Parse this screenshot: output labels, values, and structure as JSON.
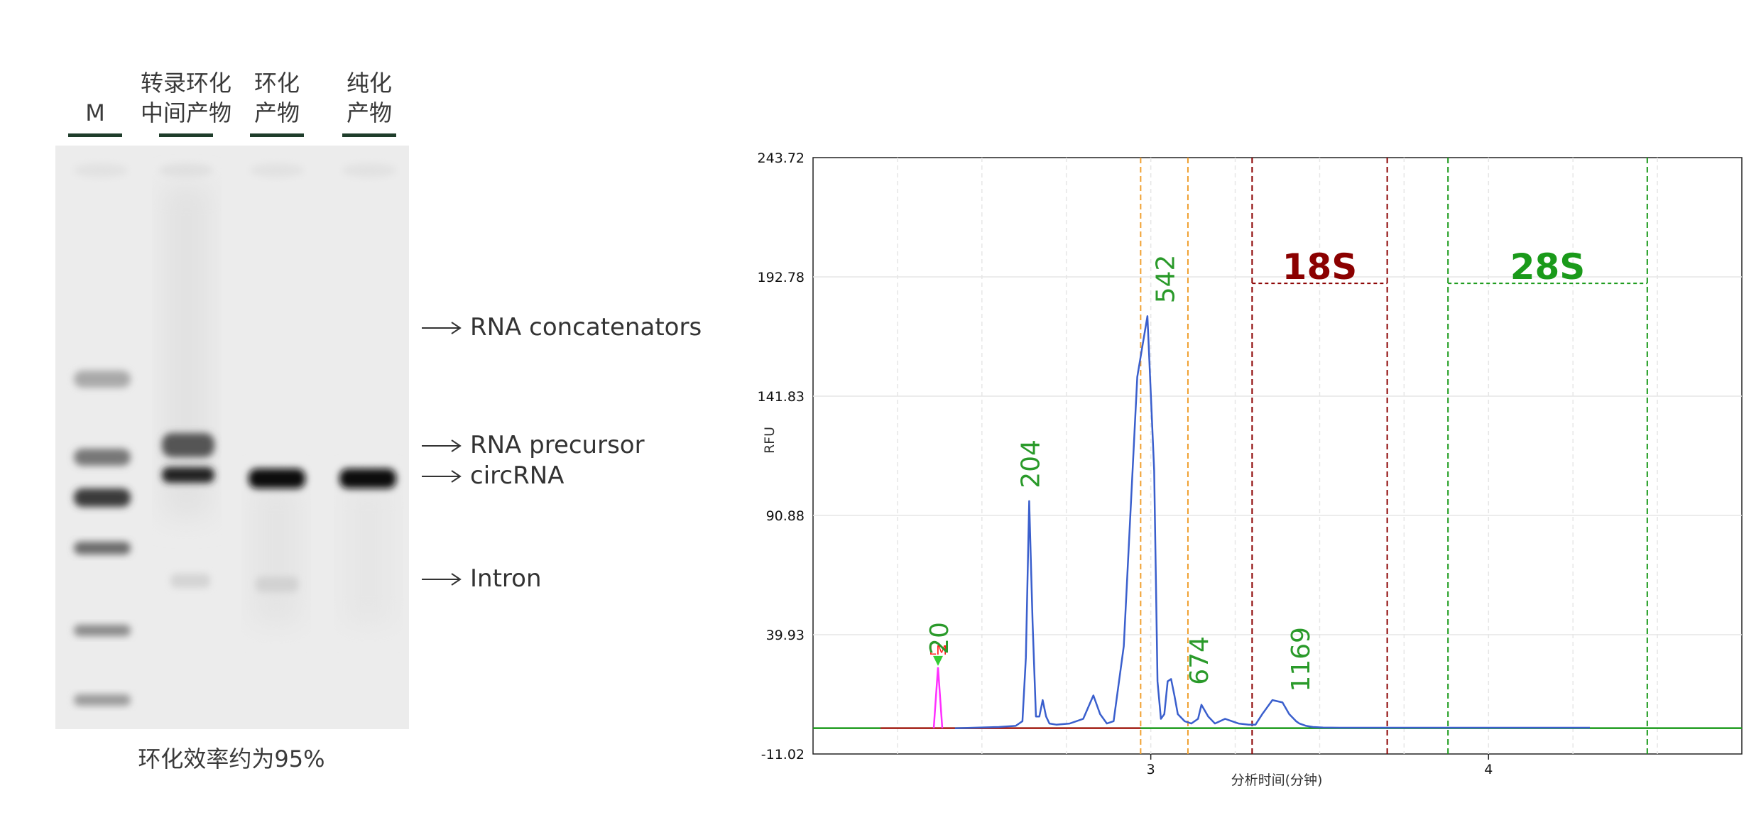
{
  "gel": {
    "lanes": [
      {
        "line1": "M",
        "line2": ""
      },
      {
        "line1": "转录环化",
        "line2": "中间产物"
      },
      {
        "line1": "环化",
        "line2": "产物"
      },
      {
        "line1": "纯化",
        "line2": "产物"
      }
    ],
    "band_labels": [
      "RNA concatenators",
      "RNA precursor",
      "circRNA",
      "Intron"
    ],
    "caption": "环化效率约为95%"
  },
  "chart_data": {
    "type": "line",
    "title": "",
    "xlabel": "分析时间(分钟)",
    "ylabel": "RFU",
    "xlim": [
      2.0,
      4.75
    ],
    "ylim": [
      -11.02,
      243.72
    ],
    "x_ticks": [
      3,
      4
    ],
    "y_ticks": [
      -11.02,
      39.93,
      90.88,
      141.83,
      192.78,
      243.72
    ],
    "grid": true,
    "peaks": [
      {
        "label": "20",
        "x": 2.37,
        "y": 26
      },
      {
        "label": "204",
        "x": 2.64,
        "y": 97
      },
      {
        "label": "542",
        "x": 3.04,
        "y": 176
      },
      {
        "label": "674",
        "x": 3.14,
        "y": 13
      },
      {
        "label": "1169",
        "x": 3.44,
        "y": 10
      }
    ],
    "series": [
      {
        "color": "#3a5fcd",
        "x": [
          2.42,
          2.55,
          2.6,
          2.62,
          2.63,
          2.64,
          2.65,
          2.66,
          2.67,
          2.68,
          2.69,
          2.7,
          2.72,
          2.76,
          2.8,
          2.83,
          2.85,
          2.87,
          2.89,
          2.92,
          2.96,
          2.99,
          3.01,
          3.02,
          3.03,
          3.04,
          3.05,
          3.06,
          3.07,
          3.08,
          3.1,
          3.12,
          3.14,
          3.15,
          3.17,
          3.19,
          3.22,
          3.24,
          3.26,
          3.29,
          3.31,
          3.33,
          3.36,
          3.39,
          3.41,
          3.43,
          3.44,
          3.46,
          3.48,
          3.51,
          3.56,
          3.6,
          3.8,
          4.0,
          4.3
        ],
        "values": [
          0,
          0.5,
          1,
          3,
          30,
          97,
          45,
          5,
          5,
          12,
          5,
          2,
          1.5,
          2,
          4,
          14,
          6,
          2,
          3,
          35,
          150,
          176,
          110,
          20,
          4,
          6,
          20,
          21,
          14,
          6,
          3,
          2,
          4,
          10,
          5,
          2,
          4,
          3,
          2,
          1.5,
          1.5,
          6,
          12,
          11,
          6,
          3,
          2,
          1,
          0.5,
          0.3,
          0.2,
          0.2,
          0.2,
          0.2,
          0.2
        ]
      }
    ],
    "marker": {
      "label": "LM",
      "x": 2.37,
      "y": 26,
      "color": "#ff2fff"
    },
    "regions": [
      {
        "label": "18S",
        "x_start": 3.3,
        "x_end": 3.7,
        "color": "#8b0000"
      },
      {
        "label": "28S",
        "x_start": 3.88,
        "x_end": 4.47,
        "color": "#1a9a1a"
      }
    ],
    "boundaries": [
      2.97,
      3.11
    ],
    "baseline_color": "#1a9a1a",
    "lower_baseline_color": "#b22222"
  }
}
